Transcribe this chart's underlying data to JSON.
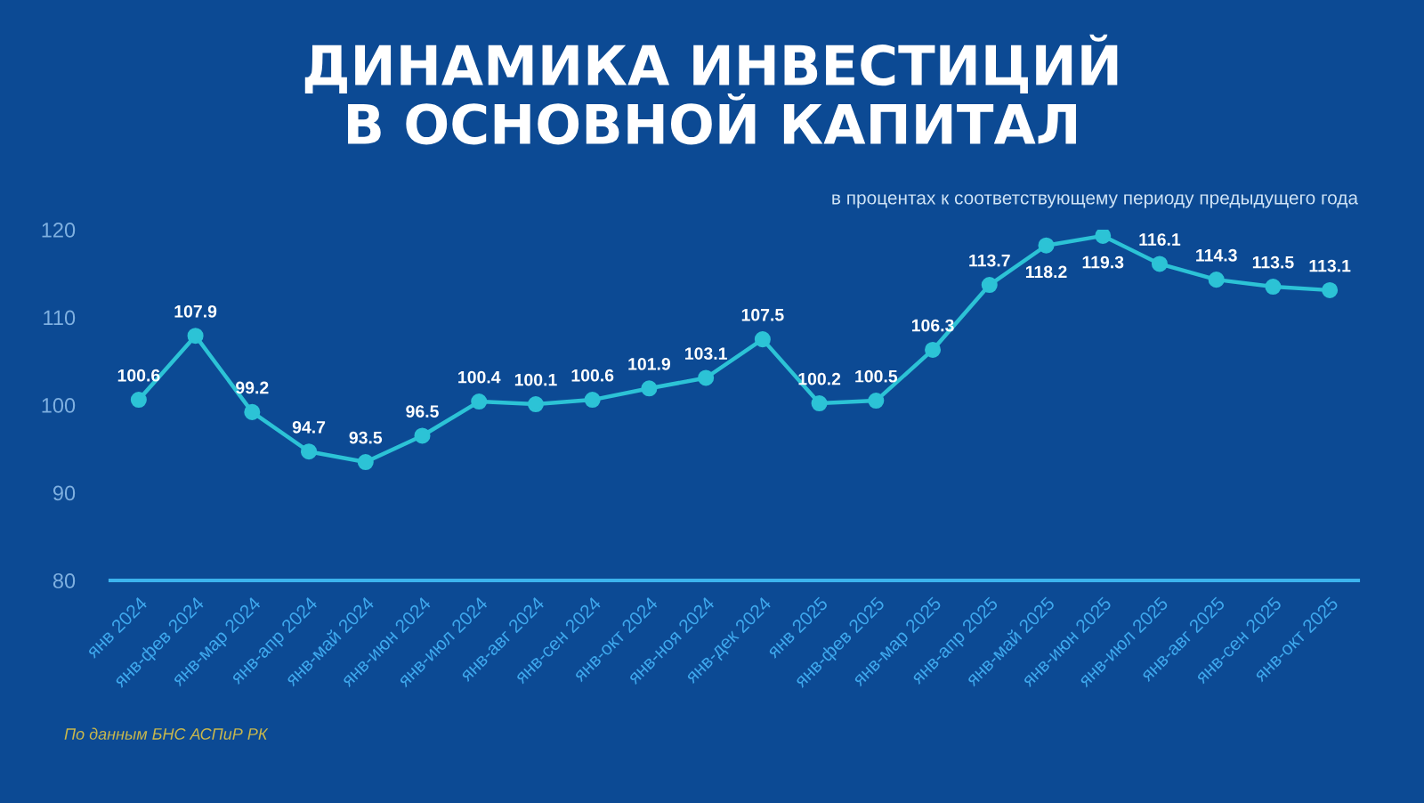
{
  "chart_data": {
    "type": "line",
    "title": "ДИНАМИКА ИНВЕСТИЦИЙ\nВ ОСНОВНОЙ КАПИТАЛ",
    "subtitle": "в процентах к соответствующему периоду предыдущего года",
    "annotations": [
      "По данным БНС АСПиР РК"
    ],
    "categories": [
      "янв 2024",
      "янв-фев 2024",
      "янв-мар 2024",
      "янв-апр 2024",
      "янв-май 2024",
      "янв-июн 2024",
      "янв-июл 2024",
      "янв-авг 2024",
      "янв-сен 2024",
      "янв-окт 2024",
      "янв-ноя 2024",
      "янв-дек 2024",
      "янв 2025",
      "янв-фев 2025",
      "янв-мар 2025",
      "янв-апр 2025",
      "янв-май 2025",
      "янв-июн 2025",
      "янв-июл 2025",
      "янв-авг 2025",
      "янв-сен 2025",
      "янв-окт 2025"
    ],
    "series": [
      {
        "color": "#2cc3d6",
        "values": [
          100.6,
          107.9,
          99.2,
          94.7,
          93.5,
          96.5,
          100.4,
          100.1,
          100.6,
          101.9,
          103.1,
          107.5,
          100.2,
          100.5,
          106.3,
          113.7,
          118.2,
          119.3,
          116.1,
          114.3,
          113.5,
          113.1
        ]
      }
    ],
    "ylim": [
      80,
      120
    ],
    "yticks": [
      80,
      90,
      100,
      110,
      120
    ],
    "data_labels": true,
    "marker": "circle",
    "line_style": "solid",
    "grid": false
  }
}
